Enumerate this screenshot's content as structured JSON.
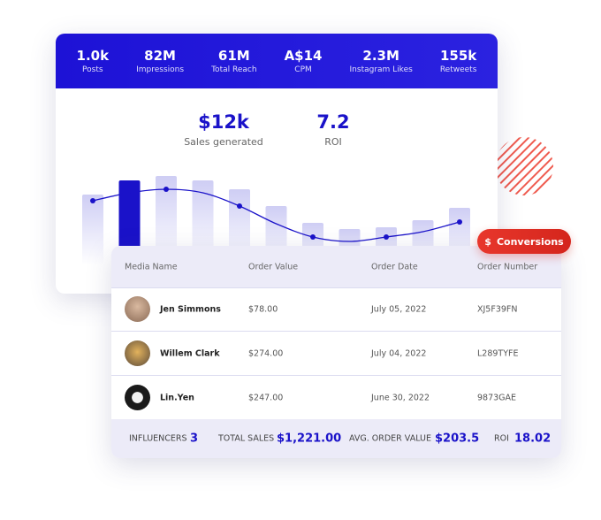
{
  "header": {
    "stats": [
      {
        "value": "1.0k",
        "label": "Posts"
      },
      {
        "value": "82M",
        "label": "Impressions"
      },
      {
        "value": "61M",
        "label": "Total Reach"
      },
      {
        "value": "A$14",
        "label": "CPM"
      },
      {
        "value": "2.3M",
        "label": "Instagram Likes"
      },
      {
        "value": "155k",
        "label": "Retweets"
      }
    ]
  },
  "summary": [
    {
      "value": "$12k",
      "label": "Sales generated"
    },
    {
      "value": "7.2",
      "label": "ROI"
    }
  ],
  "chart": {
    "type": "bar",
    "values": [
      80,
      96,
      101,
      96,
      86,
      67,
      48,
      41,
      43,
      51,
      65
    ],
    "color": "#c9c8f3",
    "highlight": 1,
    "highlight_color": "#1a12c9",
    "line": {
      "color": "#1a12c9",
      "values": [
        73,
        82,
        86,
        82,
        67,
        47,
        32,
        27,
        32,
        38,
        49
      ]
    }
  },
  "badge": "Conversions",
  "table": {
    "columns": [
      "Media Name",
      "Order Value",
      "Order Date",
      "Order Number"
    ],
    "rows": [
      [
        "Jen Simmons",
        "$78.00",
        "July 05, 2022",
        "XJ5F39FN"
      ],
      [
        "Willem Clark",
        "$274.00",
        "July 04, 2022",
        "L289TYFE"
      ],
      [
        "Lin.Yen",
        "$247.00",
        "June 30, 2022",
        "9873GAE"
      ]
    ]
  },
  "footer": [
    {
      "label": "INFLUENCERS",
      "value": "3"
    },
    {
      "label": "TOTAL SALES",
      "value": "$1,221.00"
    },
    {
      "label": "AVG. ORDER VALUE",
      "value": "$203.5"
    },
    {
      "label": "ROI",
      "value": "18.02"
    }
  ]
}
